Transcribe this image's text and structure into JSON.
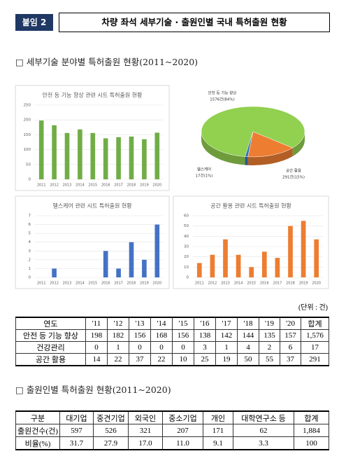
{
  "header": {
    "badge": "붙임 2",
    "title": "차량 좌석 세부기술 · 출원인별 국내 특허출원 현황"
  },
  "section1_title": "□ 세부기술 분야별 특허출원 현황(2011~2020)",
  "chart_data": [
    {
      "type": "bar",
      "title": "안전 등 기능 향상 관련 시트 특허출원 현황",
      "color": "#70ad47",
      "categories": [
        "2011",
        "2012",
        "2013",
        "2014",
        "2015",
        "2016",
        "2017",
        "2018",
        "2019",
        "2020"
      ],
      "values": [
        198,
        182,
        156,
        168,
        156,
        138,
        142,
        144,
        135,
        157
      ],
      "ylim": [
        0,
        250
      ],
      "yticks": [
        0,
        50,
        100,
        150,
        200,
        250
      ],
      "grid": true
    },
    {
      "type": "pie",
      "categories": [
        "안전 등 기능 향상",
        "헬스케어",
        "공간 활용"
      ],
      "values": [
        1576,
        17,
        291
      ],
      "value_labels": [
        "1576건(84%)",
        "17건(1%)",
        "291건(15%)"
      ],
      "colors": [
        "#92d050",
        "#2e75b6",
        "#ed7d31"
      ]
    },
    {
      "type": "bar",
      "title": "헬스케어 관련 시트 특허출원 현황",
      "color": "#4472c4",
      "categories": [
        "2011",
        "2012",
        "2013",
        "2014",
        "2015",
        "2016",
        "2017",
        "2018",
        "2019",
        "2020"
      ],
      "values": [
        0,
        1,
        0,
        0,
        0,
        3,
        1,
        4,
        2,
        6
      ],
      "ylim": [
        0,
        7
      ],
      "yticks": [
        0,
        1,
        2,
        3,
        4,
        5,
        6,
        7
      ],
      "grid": true
    },
    {
      "type": "bar",
      "title": "공간 활용 관련 시트 특허출원 현황",
      "color": "#ed7d31",
      "categories": [
        "2011",
        "2012",
        "2013",
        "2014",
        "2015",
        "2016",
        "2017",
        "2018",
        "2019",
        "2020"
      ],
      "values": [
        14,
        22,
        37,
        22,
        10,
        25,
        19,
        50,
        55,
        37
      ],
      "ylim": [
        0,
        60
      ],
      "yticks": [
        0,
        10,
        20,
        30,
        40,
        50,
        60
      ],
      "grid": true
    }
  ],
  "unit_note": "(단위 : 건)",
  "table1": {
    "rows": [
      [
        "연도",
        "'11",
        "'12",
        "'13",
        "'14",
        "'15",
        "'16",
        "'17",
        "'18",
        "'19",
        "'20",
        "합계"
      ],
      [
        "안전 등 기능 향상",
        "198",
        "182",
        "156",
        "168",
        "156",
        "138",
        "142",
        "144",
        "135",
        "157",
        "1,576"
      ],
      [
        "건강관리",
        "0",
        "1",
        "0",
        "0",
        "0",
        "3",
        "1",
        "4",
        "2",
        "6",
        "17"
      ],
      [
        "공간 활용",
        "14",
        "22",
        "37",
        "22",
        "10",
        "25",
        "19",
        "50",
        "55",
        "37",
        "291"
      ]
    ]
  },
  "section2_title": "□ 출원인별 특허출원 현황(2011~2020)",
  "table2": {
    "rows": [
      [
        "구분",
        "대기업",
        "중견기업",
        "외국인",
        "중소기업",
        "개인",
        "대학연구소 등",
        "합계"
      ],
      [
        "출원건수(건)",
        "597",
        "526",
        "321",
        "207",
        "171",
        "62",
        "1,884"
      ],
      [
        "비율(%)",
        "31.7",
        "27.9",
        "17.0",
        "11.0",
        "9.1",
        "3.3",
        "100"
      ]
    ]
  }
}
